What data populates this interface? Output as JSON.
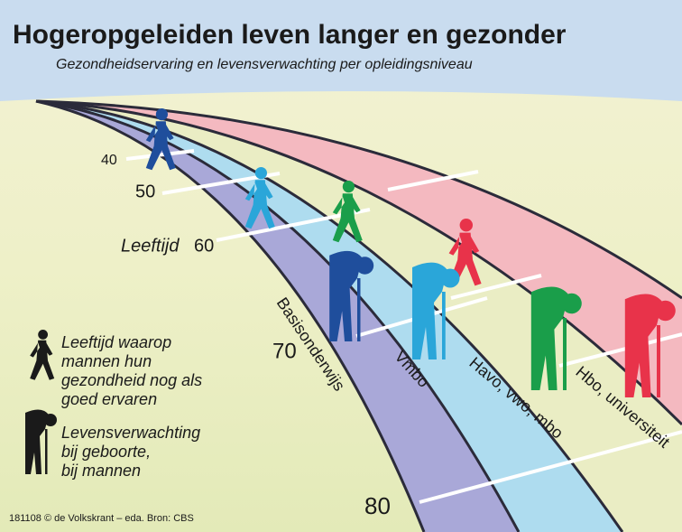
{
  "header": {
    "title": "Hogeropgeleiden leven langer en gezonder",
    "subtitle": "Gezondheidservaring en levensverwachting per opleidingsniveau"
  },
  "ages": {
    "caption": "Leeftijd",
    "labels": [
      "40",
      "50",
      "60",
      "70",
      "80"
    ]
  },
  "lanes": [
    "Basisonderwijs",
    "Vmbo",
    "Havo, vwo, mbo",
    "Hbo, universiteit"
  ],
  "legend": [
    {
      "lines": [
        "Leeftijd waarop",
        "mannen hun",
        "gezondheid nog als",
        "goed ervaren"
      ]
    },
    {
      "lines": [
        "Levensverwachting",
        "bij geboorte,",
        "bij mannen"
      ]
    }
  ],
  "footer": "181108 © de Volkskrant – eda. Bron: CBS"
}
